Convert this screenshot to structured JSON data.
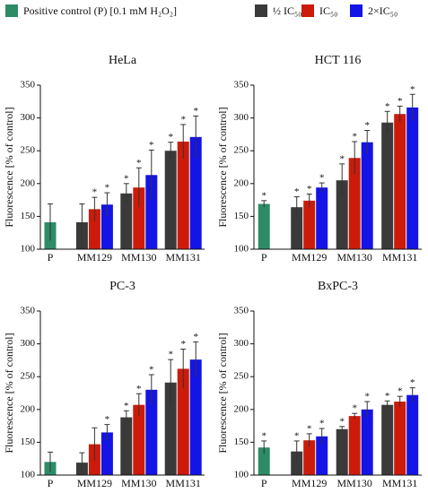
{
  "legend": [
    {
      "name": "Positive control (P) [0.1 mM H₂O₂]",
      "color": "#2e8b68"
    },
    {
      "name": "½ IC₅₀",
      "color": "#3a3a3a"
    },
    {
      "name": "IC₅₀",
      "color": "#cc1b0b"
    },
    {
      "name": "2×IC₅₀",
      "color": "#1414e6"
    }
  ],
  "chart_data": [
    {
      "type": "bar",
      "title": "HeLa",
      "ylabel": "Fluorescence [% of control]",
      "categories": [
        "P",
        "MM129",
        "MM130",
        "MM131"
      ],
      "ylim": [
        100,
        350
      ],
      "yticks": [
        100,
        150,
        200,
        250,
        300,
        350
      ],
      "series": [
        {
          "color": "#2e8b68",
          "values": [
            141,
            null,
            null,
            null
          ],
          "errors": [
            28,
            null,
            null,
            null
          ],
          "stars": [
            null,
            null,
            null,
            null
          ]
        },
        {
          "color": "#3a3a3a",
          "values": [
            null,
            141,
            185,
            250
          ],
          "errors": [
            null,
            28,
            15,
            13
          ],
          "stars": [
            null,
            null,
            "*",
            "*"
          ]
        },
        {
          "color": "#cc1b0b",
          "values": [
            null,
            161,
            194,
            264
          ],
          "errors": [
            null,
            18,
            30,
            26
          ],
          "stars": [
            null,
            "*",
            "*",
            "*"
          ]
        },
        {
          "color": "#1414e6",
          "values": [
            null,
            168,
            213,
            271
          ],
          "errors": [
            null,
            18,
            38,
            32
          ],
          "stars": [
            null,
            "*",
            "*",
            "*"
          ]
        }
      ]
    },
    {
      "type": "bar",
      "title": "HCT 116",
      "ylabel": "Fluorescence [% of control]",
      "categories": [
        "P",
        "MM129",
        "MM130",
        "MM131"
      ],
      "ylim": [
        100,
        350
      ],
      "yticks": [
        100,
        150,
        200,
        250,
        300,
        350
      ],
      "series": [
        {
          "color": "#2e8b68",
          "values": [
            169,
            null,
            null,
            null
          ],
          "errors": [
            5,
            null,
            null,
            null
          ],
          "stars": [
            "*",
            null,
            null,
            null
          ]
        },
        {
          "color": "#3a3a3a",
          "values": [
            null,
            164,
            205,
            293
          ],
          "errors": [
            null,
            16,
            25,
            17
          ],
          "stars": [
            null,
            "*",
            "*",
            "*"
          ]
        },
        {
          "color": "#cc1b0b",
          "values": [
            null,
            174,
            239,
            306
          ],
          "errors": [
            null,
            10,
            25,
            12
          ],
          "stars": [
            null,
            "*",
            "*",
            "*"
          ]
        },
        {
          "color": "#1414e6",
          "values": [
            null,
            194,
            263,
            316
          ],
          "errors": [
            null,
            7,
            18,
            20
          ],
          "stars": [
            null,
            "*",
            "*",
            "*"
          ]
        }
      ]
    },
    {
      "type": "bar",
      "title": "PC-3",
      "ylabel": "Fluorescence [% of control]",
      "categories": [
        "P",
        "MM129",
        "MM130",
        "MM131"
      ],
      "ylim": [
        100,
        350
      ],
      "yticks": [
        100,
        150,
        200,
        250,
        300,
        350
      ],
      "series": [
        {
          "color": "#2e8b68",
          "values": [
            120,
            null,
            null,
            null
          ],
          "errors": [
            15,
            null,
            null,
            null
          ],
          "stars": [
            null,
            null,
            null,
            null
          ]
        },
        {
          "color": "#3a3a3a",
          "values": [
            null,
            119,
            188,
            241
          ],
          "errors": [
            null,
            15,
            10,
            35
          ],
          "stars": [
            null,
            null,
            "*",
            "*"
          ]
        },
        {
          "color": "#cc1b0b",
          "values": [
            null,
            147,
            207,
            262
          ],
          "errors": [
            null,
            25,
            17,
            30
          ],
          "stars": [
            null,
            null,
            "*",
            "*"
          ]
        },
        {
          "color": "#1414e6",
          "values": [
            null,
            165,
            230,
            276
          ],
          "errors": [
            null,
            12,
            23,
            27
          ],
          "stars": [
            null,
            "*",
            "*",
            "*"
          ]
        }
      ]
    },
    {
      "type": "bar",
      "title": "BxPC-3",
      "ylabel": "Fluorescence [% of control]",
      "categories": [
        "P",
        "MM129",
        "MM130",
        "MM131"
      ],
      "ylim": [
        100,
        350
      ],
      "yticks": [
        100,
        150,
        200,
        250,
        300,
        350
      ],
      "series": [
        {
          "color": "#2e8b68",
          "values": [
            142,
            null,
            null,
            null
          ],
          "errors": [
            10,
            null,
            null,
            null
          ],
          "stars": [
            "*",
            null,
            null,
            null
          ]
        },
        {
          "color": "#3a3a3a",
          "values": [
            null,
            136,
            170,
            207
          ],
          "errors": [
            null,
            16,
            4,
            6
          ],
          "stars": [
            null,
            "*",
            "*",
            "*"
          ]
        },
        {
          "color": "#cc1b0b",
          "values": [
            null,
            153,
            190,
            212
          ],
          "errors": [
            null,
            10,
            4,
            8
          ],
          "stars": [
            null,
            "*",
            "*",
            "*"
          ]
        },
        {
          "color": "#1414e6",
          "values": [
            null,
            159,
            200,
            222
          ],
          "errors": [
            null,
            12,
            12,
            11
          ],
          "stars": [
            null,
            "*",
            "*",
            "*"
          ]
        }
      ]
    }
  ]
}
